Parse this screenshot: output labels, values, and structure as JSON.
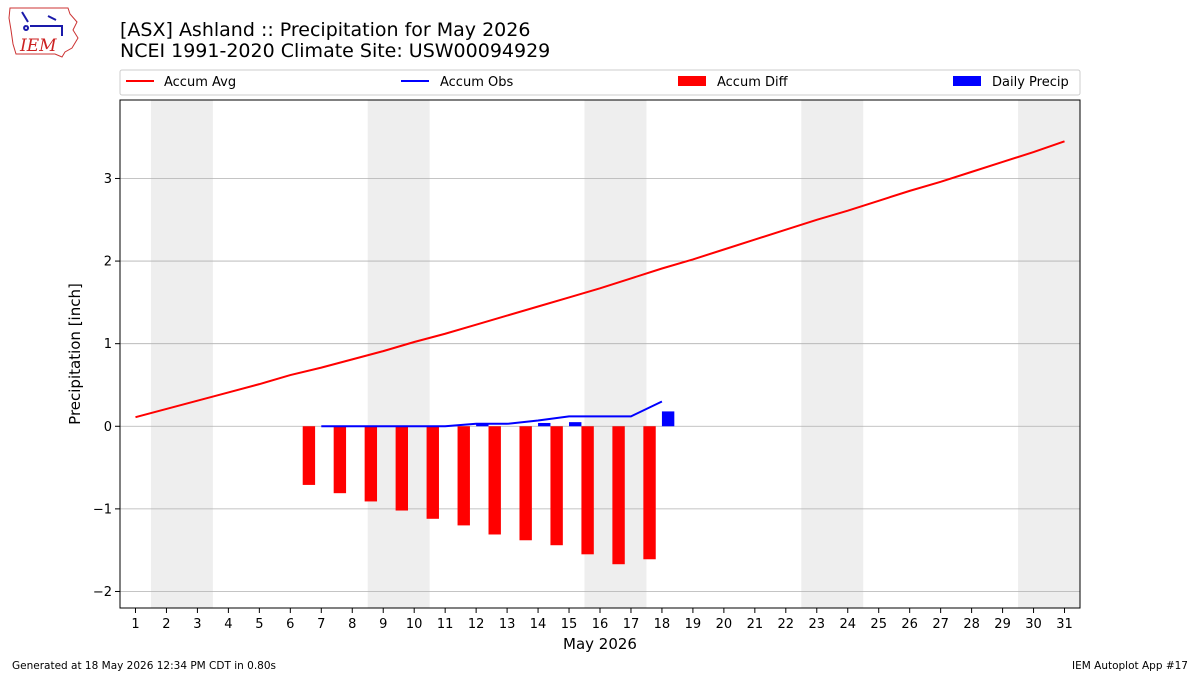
{
  "header": {
    "title": "[ASX] Ashland :: Precipitation for May 2026",
    "subtitle": "NCEI 1991-2020 Climate Site: USW00094929",
    "logo_text": "IEM"
  },
  "footer": {
    "generated": "Generated at 18 May 2026 12:34 PM CDT in 0.80s",
    "app": "IEM Autoplot App #17"
  },
  "chart_data": {
    "type": "line",
    "title": "[ASX] Ashland :: Precipitation for May 2026",
    "xlabel": "May 2026",
    "ylabel": "Precipitation [inch]",
    "xlim": [
      0.5,
      31.5
    ],
    "ylim": [
      -2.2,
      3.95
    ],
    "yticks": [
      -2,
      -1,
      0,
      1,
      2,
      3
    ],
    "ytick_labels": [
      "−2",
      "−1",
      "0",
      "1",
      "2",
      "3"
    ],
    "x_ticks": [
      1,
      2,
      3,
      4,
      5,
      6,
      7,
      8,
      9,
      10,
      11,
      12,
      13,
      14,
      15,
      16,
      17,
      18,
      19,
      20,
      21,
      22,
      23,
      24,
      25,
      26,
      27,
      28,
      29,
      30,
      31
    ],
    "weekend_shading": [
      [
        1.5,
        3.5
      ],
      [
        8.5,
        10.5
      ],
      [
        15.5,
        17.5
      ],
      [
        22.5,
        24.5
      ],
      [
        29.5,
        31.5
      ]
    ],
    "grid": "y",
    "legend": {
      "placement": "top",
      "entries": [
        "Accum Avg",
        "Accum Obs",
        "Accum Diff",
        "Daily Precip"
      ]
    },
    "colors": {
      "accum_avg": "#ff0000",
      "accum_obs": "#0000ff",
      "accum_diff": "#ff0000",
      "daily_precip": "#0000ff",
      "weekend": "#eeeeee",
      "grid": "#b0b0b0"
    },
    "series": [
      {
        "name": "Accum Avg",
        "type": "line",
        "x": [
          1,
          2,
          3,
          4,
          5,
          6,
          7,
          8,
          9,
          10,
          11,
          12,
          13,
          14,
          15,
          16,
          17,
          18,
          19,
          20,
          21,
          22,
          23,
          24,
          25,
          26,
          27,
          28,
          29,
          30,
          31
        ],
        "values": [
          0.11,
          0.21,
          0.31,
          0.41,
          0.51,
          0.62,
          0.71,
          0.81,
          0.91,
          1.02,
          1.12,
          1.23,
          1.34,
          1.45,
          1.56,
          1.67,
          1.79,
          1.91,
          2.02,
          2.14,
          2.26,
          2.38,
          2.5,
          2.61,
          2.73,
          2.85,
          2.96,
          3.08,
          3.2,
          3.32,
          3.45
        ]
      },
      {
        "name": "Accum Obs",
        "type": "line",
        "x": [
          7,
          8,
          9,
          10,
          11,
          12,
          13,
          14,
          15,
          16,
          17,
          18
        ],
        "values": [
          0.0,
          0.0,
          0.0,
          0.0,
          0.0,
          0.03,
          0.03,
          0.07,
          0.12,
          0.12,
          0.12,
          0.3
        ]
      },
      {
        "name": "Accum Diff",
        "type": "bar",
        "x": [
          7,
          8,
          9,
          10,
          11,
          12,
          13,
          14,
          15,
          16,
          17,
          18
        ],
        "values": [
          -0.71,
          -0.81,
          -0.91,
          -1.02,
          -1.12,
          -1.2,
          -1.31,
          -1.38,
          -1.44,
          -1.55,
          -1.67,
          -1.61
        ]
      },
      {
        "name": "Daily Precip",
        "type": "bar",
        "x": [
          12,
          14,
          15,
          18
        ],
        "values": [
          0.03,
          0.04,
          0.05,
          0.18
        ]
      }
    ]
  }
}
